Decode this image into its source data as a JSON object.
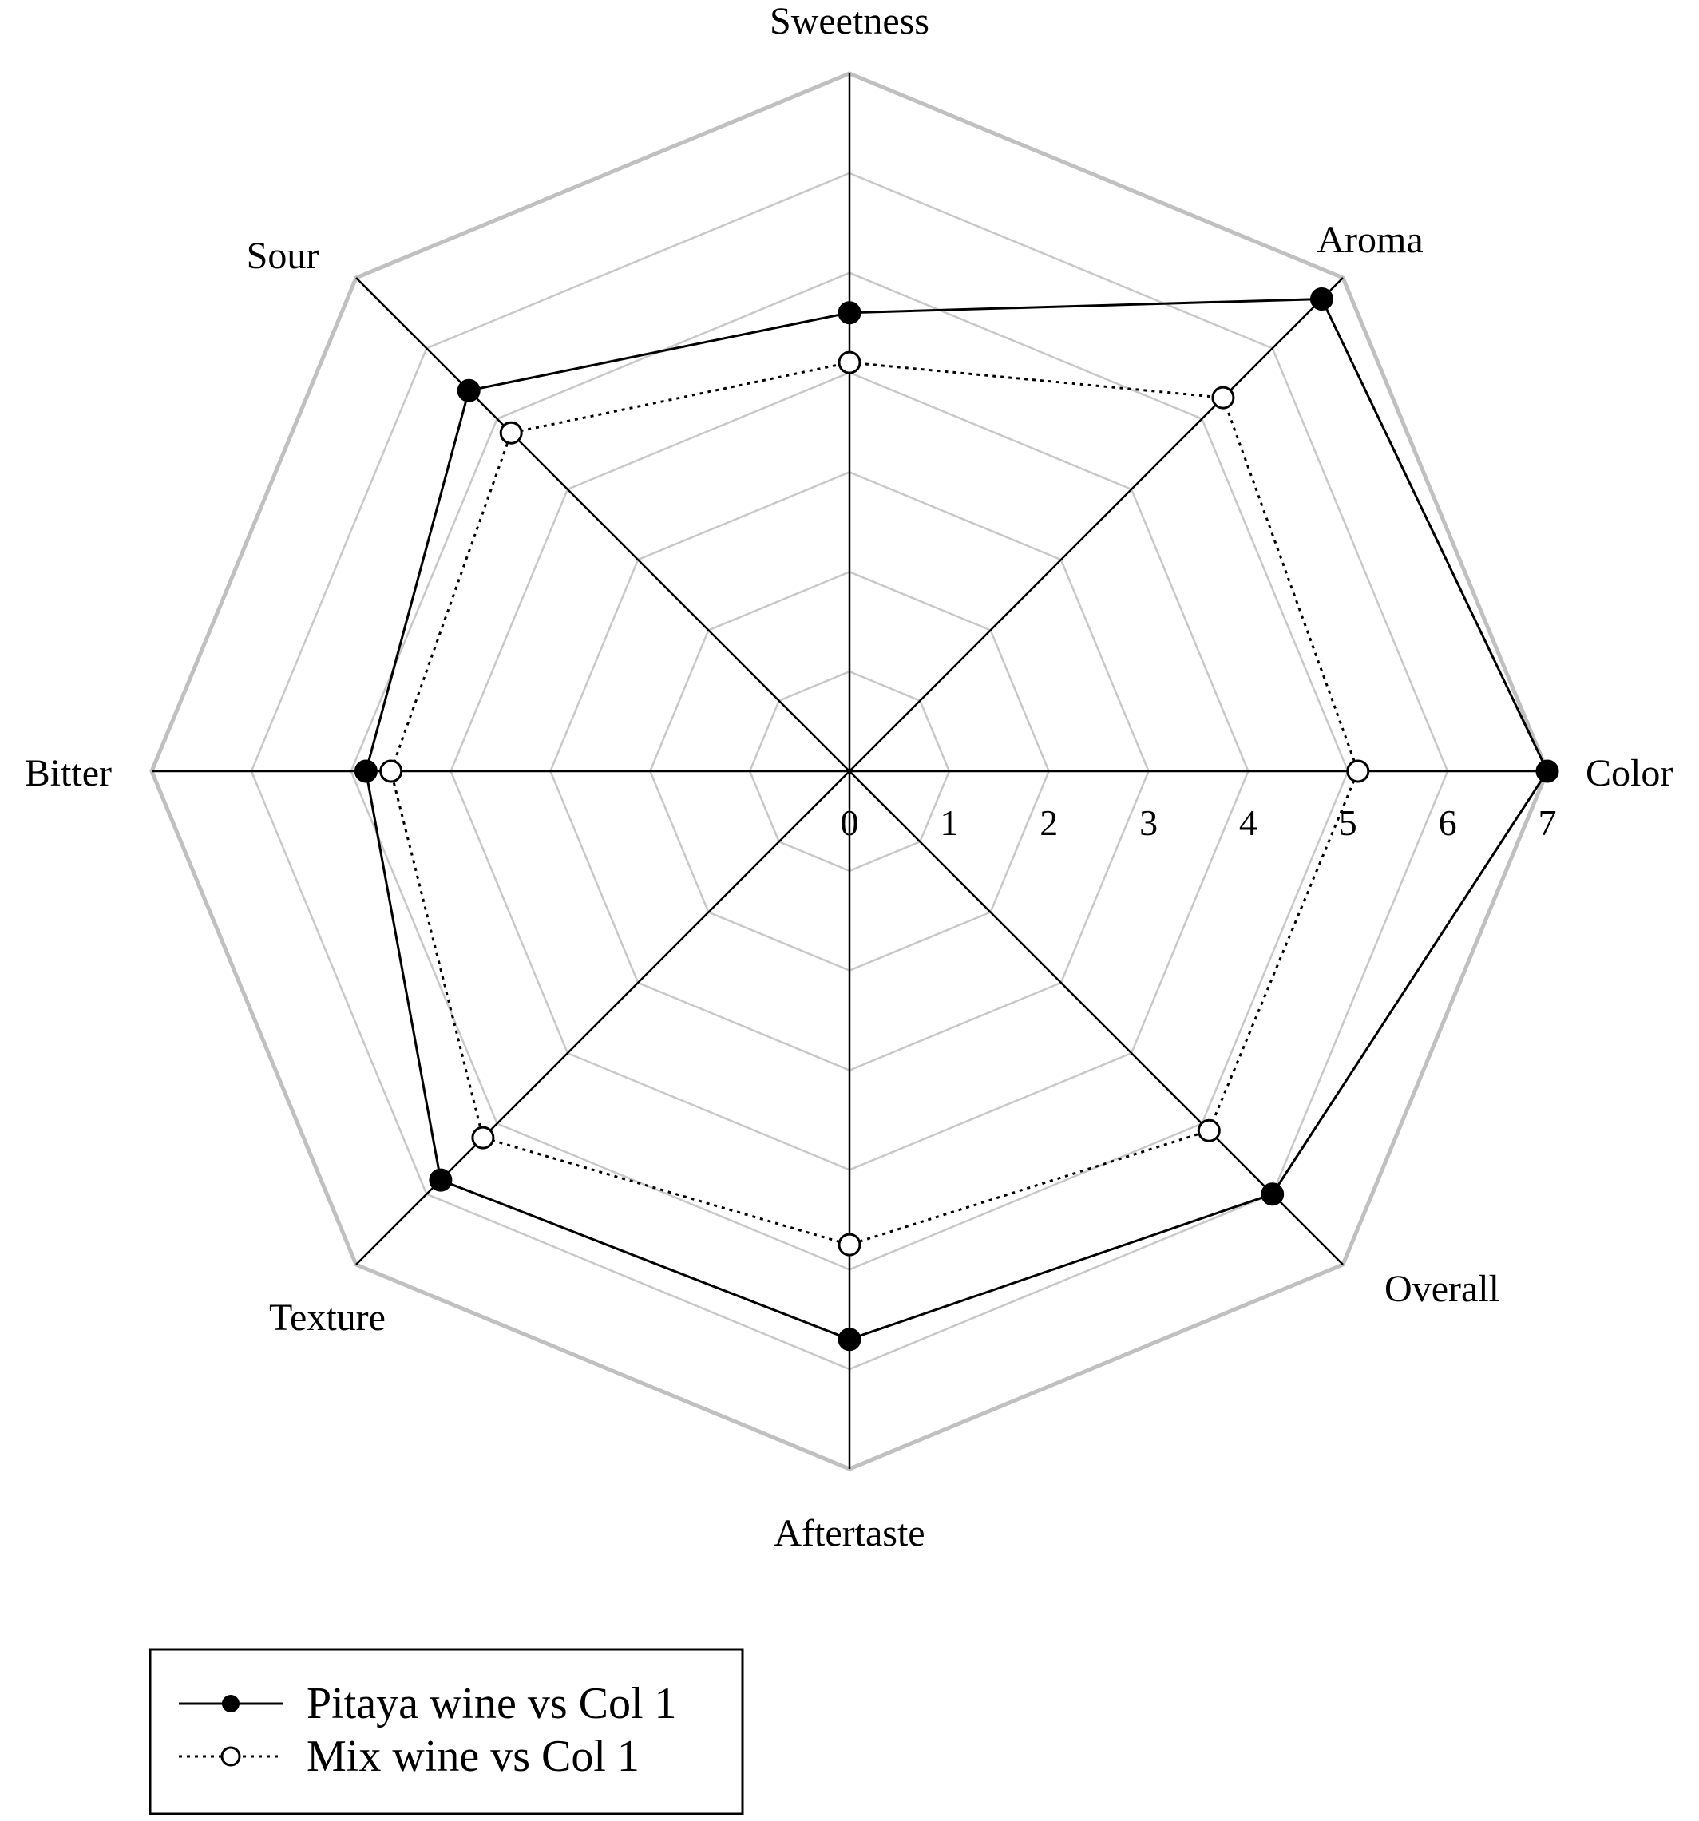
{
  "chart_data": {
    "type": "radar",
    "axes": [
      "Sweetness",
      "Aroma",
      "Color",
      "Overall",
      "Aftertaste",
      "Texture",
      "Bitter",
      "Sour"
    ],
    "ticks": [
      "0",
      "1",
      "2",
      "3",
      "4",
      "5",
      "6",
      "7"
    ],
    "range": [
      0,
      7
    ],
    "grid": true,
    "legend_position": "bottom-left",
    "series": [
      {
        "name": "Pitaya wine vs Col 1",
        "marker": "filled-circle",
        "line": "solid",
        "values": [
          4.6,
          6.7,
          7.0,
          6.0,
          5.7,
          5.8,
          4.85,
          5.4
        ]
      },
      {
        "name": "Mix wine vs Col 1",
        "marker": "open-circle",
        "line": "dotted",
        "values": [
          4.1,
          5.3,
          5.1,
          5.1,
          4.75,
          5.2,
          4.6,
          4.8
        ]
      }
    ],
    "colors": {
      "series_line": "#000000",
      "outer_ring": "#c0c0c0",
      "grid_ring": "#c8c8c8",
      "spoke": "#000000"
    }
  }
}
